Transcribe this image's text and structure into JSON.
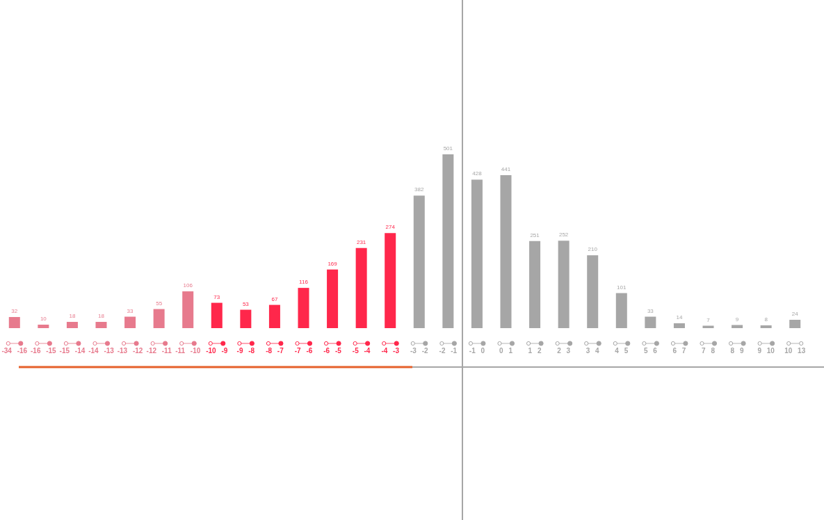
{
  "chart_data": {
    "type": "bar",
    "categories": [
      "-34 -16",
      "-16 -15",
      "-15 -14",
      "-14 -13",
      "-13 -12",
      "-12 -11",
      "-11 -10",
      "-10 -9",
      "-9 -8",
      "-8 -7",
      "-7 -6",
      "-6 -5",
      "-5 -4",
      "-4 -3",
      "-3 -2",
      "-2 -1",
      "-1 0",
      "0 1",
      "1 2",
      "2 3",
      "3 4",
      "4 5",
      "5 6",
      "6 7",
      "7 8",
      "8 9",
      "9 10",
      "10 13"
    ],
    "values": [
      32,
      10,
      18,
      18,
      33,
      55,
      106,
      73,
      53,
      67,
      116,
      169,
      231,
      274,
      382,
      501,
      428,
      441,
      251,
      252,
      210,
      101,
      33,
      14,
      7,
      9,
      8,
      24
    ],
    "colors": [
      "#e77a8d",
      "#e77a8d",
      "#e77a8d",
      "#e77a8d",
      "#e77a8d",
      "#e77a8d",
      "#e77a8d",
      "#ff274b",
      "#ff274b",
      "#ff274b",
      "#ff274b",
      "#ff274b",
      "#ff274b",
      "#ff274b",
      "#a6a6a6",
      "#a6a6a6",
      "#a6a6a6",
      "#a6a6a6",
      "#a6a6a6",
      "#a6a6a6",
      "#a6a6a6",
      "#a6a6a6",
      "#a6a6a6",
      "#a6a6a6",
      "#a6a6a6",
      "#a6a6a6",
      "#a6a6a6",
      "#a6a6a6"
    ],
    "data_labels": true,
    "tick_labels": "x"
  }
}
